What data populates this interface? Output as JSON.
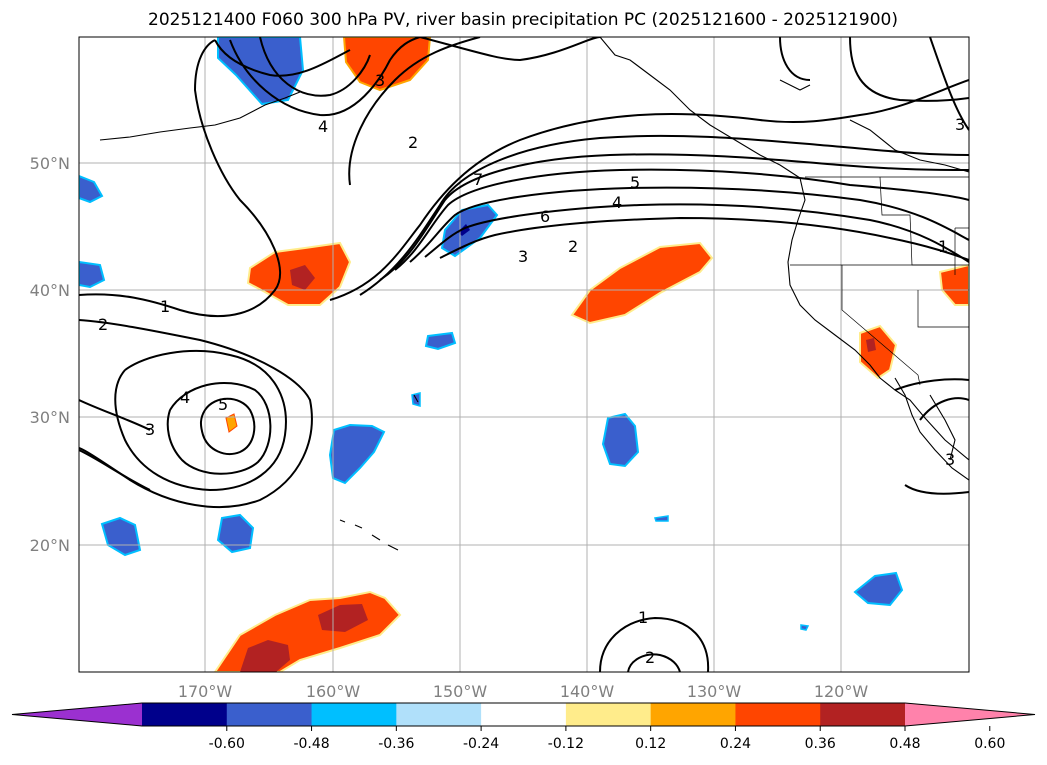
{
  "title": "2025121400 F060 300 hPa PV, river basin precipitation PC (2025121600 - 2025121900)",
  "map": {
    "lat_labels": [
      {
        "text": "50°N",
        "lat": 50
      },
      {
        "text": "40°N",
        "lat": 40
      },
      {
        "text": "30°N",
        "lat": 30
      },
      {
        "text": "20°N",
        "lat": 20
      }
    ],
    "lon_labels": [
      {
        "text": "170°W",
        "lon": -170
      },
      {
        "text": "160°W",
        "lon": -160
      },
      {
        "text": "150°W",
        "lon": -150
      },
      {
        "text": "140°W",
        "lon": -140
      },
      {
        "text": "130°W",
        "lon": -130
      },
      {
        "text": "120°W",
        "lon": -120
      }
    ],
    "extent": {
      "lon_min": -180,
      "lon_max": -110,
      "lat_min": 10,
      "lat_max": 60
    },
    "grid": true
  },
  "pv_contour_labels": [
    "1",
    "2",
    "3",
    "4",
    "5",
    "6",
    "7"
  ],
  "colorbar": {
    "ticks": [
      "-0.60",
      "-0.48",
      "-0.36",
      "-0.24",
      "-0.12",
      "0.12",
      "0.24",
      "0.36",
      "0.48",
      "0.60"
    ],
    "colors": [
      "#9b30d0",
      "#00008b",
      "#3a5fcd",
      "#00bfff",
      "#b0e0fa",
      "#ffffff",
      "#ffec8b",
      "#ffa500",
      "#ff4500",
      "#b22222",
      "#ff82ab"
    ],
    "extend": "both"
  }
}
